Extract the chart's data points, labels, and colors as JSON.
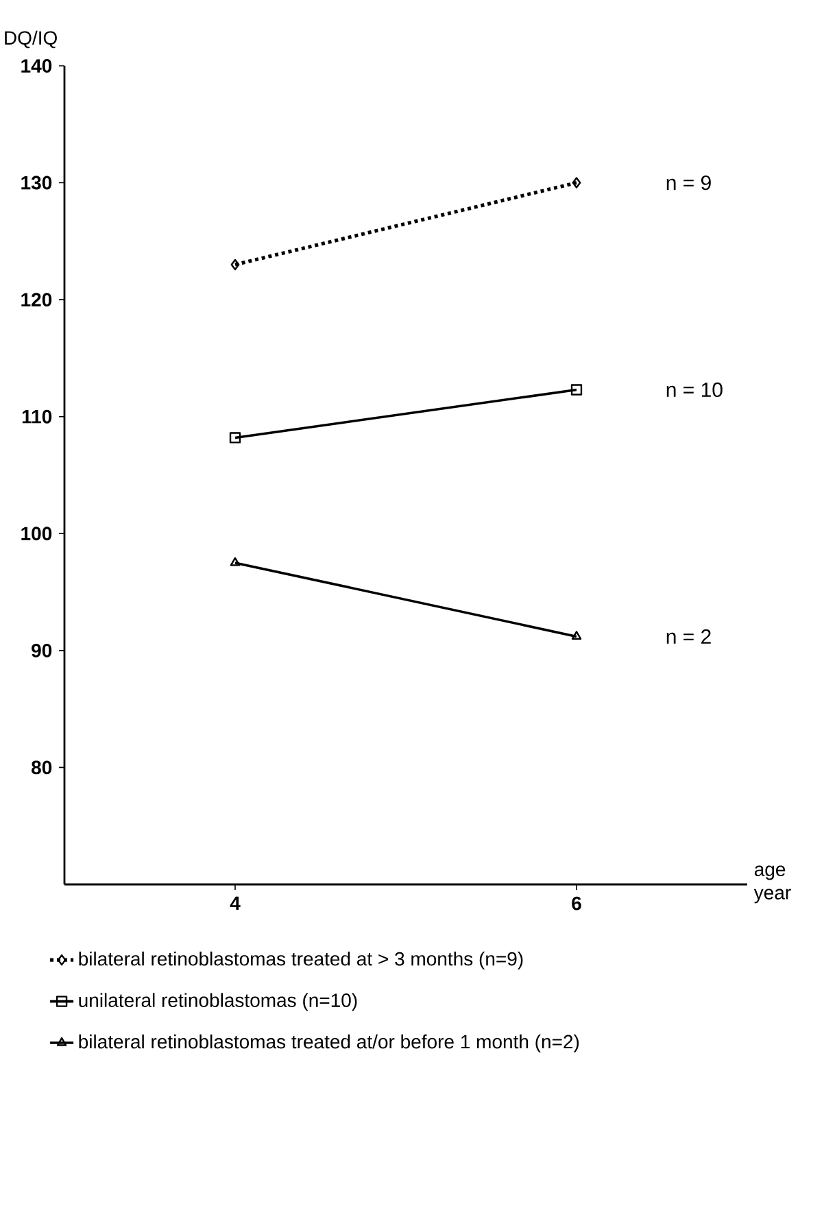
{
  "chart_data": {
    "type": "line",
    "xlabel": "age year",
    "ylabel": "DQ/IQ",
    "x": [
      4,
      6
    ],
    "xlim": [
      3,
      7
    ],
    "xticks": [
      4,
      6
    ],
    "ylim": [
      70,
      140
    ],
    "yticks": [
      80,
      90,
      100,
      110,
      120,
      130,
      140
    ],
    "series": [
      {
        "name": "bilateral retinoblastomas treated at > 3 months  (n=9)",
        "color": "#000000",
        "values": [
          123,
          130
        ],
        "marker": "diamond",
        "line_style": "dotted"
      },
      {
        "name": "unilateral retinoblastomas   (n=10)",
        "color": "#000000",
        "values": [
          108.2,
          112.3
        ],
        "marker": "square",
        "line_style": "solid"
      },
      {
        "name": "bilateral retinoblastomas treated at/or before 1 month  (n=2)",
        "color": "#000000",
        "values": [
          97.5,
          91.2
        ],
        "marker": "triangle",
        "line_style": "solid"
      }
    ],
    "annotations": [
      "n = 9",
      "n = 10",
      "n = 2"
    ],
    "grid": false,
    "legend": "bottom"
  }
}
